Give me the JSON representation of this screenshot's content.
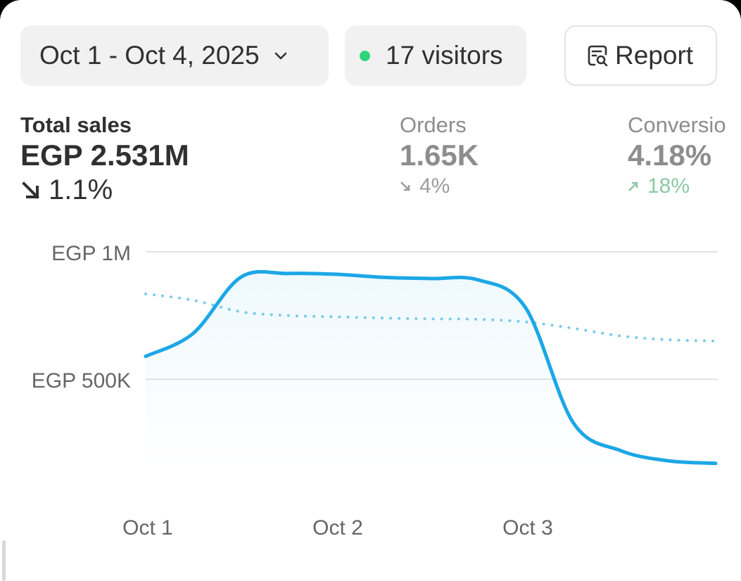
{
  "header": {
    "date_range": "Oct 1 - Oct 4, 2025",
    "visitors": "17 visitors",
    "report_label": "Report"
  },
  "metrics": {
    "total_sales": {
      "label": "Total sales",
      "value": "EGP 2.531M",
      "delta": "1.1%",
      "direction": "down"
    },
    "orders": {
      "label": "Orders",
      "value": "1.65K",
      "delta": "4%",
      "direction": "down"
    },
    "conversion": {
      "label": "Conversio",
      "value": "4.18%",
      "delta": "18%",
      "direction": "up"
    }
  },
  "colors": {
    "current_series": "#1ca7e6",
    "comparison_series": "#7ccbea",
    "visitor_dot": "#2fd57d",
    "positive_delta": "#8ec9a6"
  },
  "icons": {
    "date_chevron": "chevron-down-icon",
    "report": "report-search-icon",
    "sales_delta": "arrow-down-right-icon",
    "orders_delta": "arrow-down-right-icon",
    "conversion_delta": "arrow-up-right-icon"
  },
  "chart_data": {
    "type": "line",
    "x": [
      0,
      0.25,
      0.5,
      0.75,
      1,
      1.25,
      1.5,
      1.75,
      2,
      2.25,
      2.5,
      2.75,
      3
    ],
    "tick_positions": [
      0,
      1,
      2
    ],
    "categories": [
      "Oct 1",
      "Oct 2",
      "Oct 3"
    ],
    "yticks": [
      500000,
      1000000
    ],
    "ytick_labels": [
      "EGP 500K",
      "EGP 1M"
    ],
    "ylim": [
      150000,
      1000000
    ],
    "grid": true,
    "series": [
      {
        "name": "current",
        "style": "solid",
        "values": [
          590000,
          680000,
          900000,
          915000,
          912000,
          900000,
          895000,
          890000,
          780000,
          330000,
          220000,
          180000,
          170000
        ]
      },
      {
        "name": "comparison",
        "style": "dotted",
        "values": [
          835000,
          810000,
          765000,
          750000,
          745000,
          740000,
          737000,
          735000,
          725000,
          700000,
          670000,
          655000,
          650000
        ]
      }
    ]
  }
}
